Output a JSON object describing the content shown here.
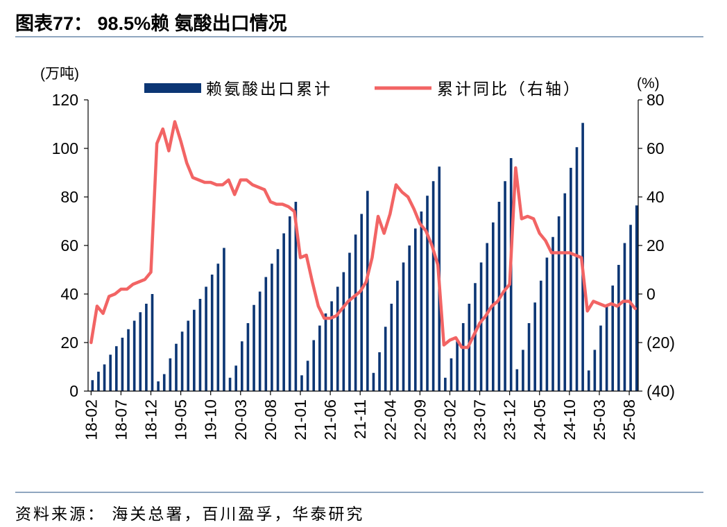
{
  "title": "图表77： 98.5%赖 氨酸出口情况",
  "source": "资料来源：  海关总署，百川盈孚，华泰研究",
  "colors": {
    "bar": "#0c3674",
    "line": "#f26464",
    "rule": "#8fa6bf"
  },
  "chart_data": {
    "type": "bar+line",
    "left_unit": "(万吨)",
    "right_unit": "(%)",
    "left_axis": {
      "min": 0,
      "max": 120,
      "ticks": [
        "0",
        "20",
        "40",
        "60",
        "80",
        "100",
        "120"
      ]
    },
    "right_axis": {
      "min": -40,
      "max": 80,
      "ticks": [
        "(40)",
        "(20)",
        "0",
        "20",
        "40",
        "60",
        "80"
      ]
    },
    "legend": {
      "bar": "赖氨酸出口累计",
      "line": "累计同比（右轴）"
    },
    "x_tick_labels": [
      "18-02",
      "18-07",
      "18-12",
      "19-05",
      "19-10",
      "20-03",
      "20-08",
      "21-01",
      "21-06",
      "21-11",
      "22-04",
      "22-09",
      "23-02",
      "23-07",
      "23-12",
      "24-05",
      "24-10",
      "25-03",
      "25-08"
    ],
    "months": [
      "18-02",
      "18-03",
      "18-04",
      "18-05",
      "18-06",
      "18-07",
      "18-08",
      "18-09",
      "18-10",
      "18-11",
      "18-12",
      "19-01",
      "19-02",
      "19-03",
      "19-04",
      "19-05",
      "19-06",
      "19-07",
      "19-08",
      "19-09",
      "19-10",
      "19-11",
      "19-12",
      "20-01",
      "20-02",
      "20-03",
      "20-04",
      "20-05",
      "20-06",
      "20-07",
      "20-08",
      "20-09",
      "20-10",
      "20-11",
      "20-12",
      "21-01",
      "21-02",
      "21-03",
      "21-04",
      "21-05",
      "21-06",
      "21-07",
      "21-08",
      "21-09",
      "21-10",
      "21-11",
      "21-12",
      "22-01",
      "22-02",
      "22-03",
      "22-04",
      "22-05",
      "22-06",
      "22-07",
      "22-08",
      "22-09",
      "22-10",
      "22-11",
      "22-12",
      "23-01",
      "23-02",
      "23-03",
      "23-04",
      "23-05",
      "23-06",
      "23-07",
      "23-08",
      "23-09",
      "23-10",
      "23-11",
      "23-12",
      "24-01",
      "24-02",
      "24-03",
      "24-04",
      "24-05",
      "24-06",
      "24-07",
      "24-08",
      "24-09",
      "24-10",
      "24-11",
      "24-12",
      "25-01",
      "25-02",
      "25-03",
      "25-04",
      "25-05",
      "25-06",
      "25-07",
      "25-08",
      "25-09"
    ],
    "cumulative_exports": [
      4.5,
      8.0,
      11.0,
      15.0,
      18.5,
      22.0,
      25.5,
      29.0,
      32.5,
      36.0,
      40.0,
      4.0,
      7.0,
      13.5,
      19.5,
      24.5,
      29.0,
      33.5,
      38.0,
      43.0,
      48.0,
      52.5,
      59.0,
      5.5,
      10.5,
      20.5,
      28.0,
      35.5,
      41.0,
      47.0,
      52.5,
      58.5,
      65.0,
      72.0,
      78.0,
      6.5,
      12.5,
      21.0,
      27.0,
      32.0,
      37.0,
      43.0,
      49.0,
      57.0,
      64.5,
      73.0,
      82.5,
      7.5,
      16.0,
      26.5,
      36.0,
      45.5,
      53.0,
      60.0,
      67.0,
      74.0,
      80.5,
      86.5,
      92.5,
      5.5,
      13.5,
      20.5,
      28.0,
      36.0,
      44.5,
      53.0,
      61.0,
      69.5,
      78.0,
      86.5,
      96.0,
      9.0,
      17.0,
      28.0,
      36.5,
      45.5,
      55.0,
      63.5,
      72.0,
      81.5,
      92.0,
      100.5,
      110.5,
      8.5,
      17.0,
      27.0,
      35.0,
      43.5,
      52.0,
      61.0,
      68.5,
      76.5
    ],
    "cumulative_yoy_pct": [
      -20,
      -5,
      -8,
      -1,
      0,
      2,
      2,
      4,
      5,
      6,
      9,
      62,
      68,
      59,
      71,
      63,
      54,
      48,
      47,
      46,
      46,
      45,
      45,
      47,
      41,
      47,
      47,
      45,
      44,
      43,
      38,
      37,
      37,
      36,
      34,
      15,
      16,
      5,
      -5,
      -10,
      -10,
      -9,
      -6,
      -3,
      -1,
      1,
      5,
      15,
      32,
      25,
      33,
      45,
      42,
      40,
      35,
      29,
      26,
      20,
      12,
      -21,
      -19,
      -18,
      -22,
      -22,
      -17,
      -12,
      -9,
      -5,
      -3,
      1,
      4,
      52,
      31,
      32,
      31,
      25,
      22,
      17,
      17,
      17,
      17,
      16,
      15,
      -7,
      -3,
      -4,
      -5,
      -4,
      -5,
      -3,
      -3,
      -6
    ]
  }
}
